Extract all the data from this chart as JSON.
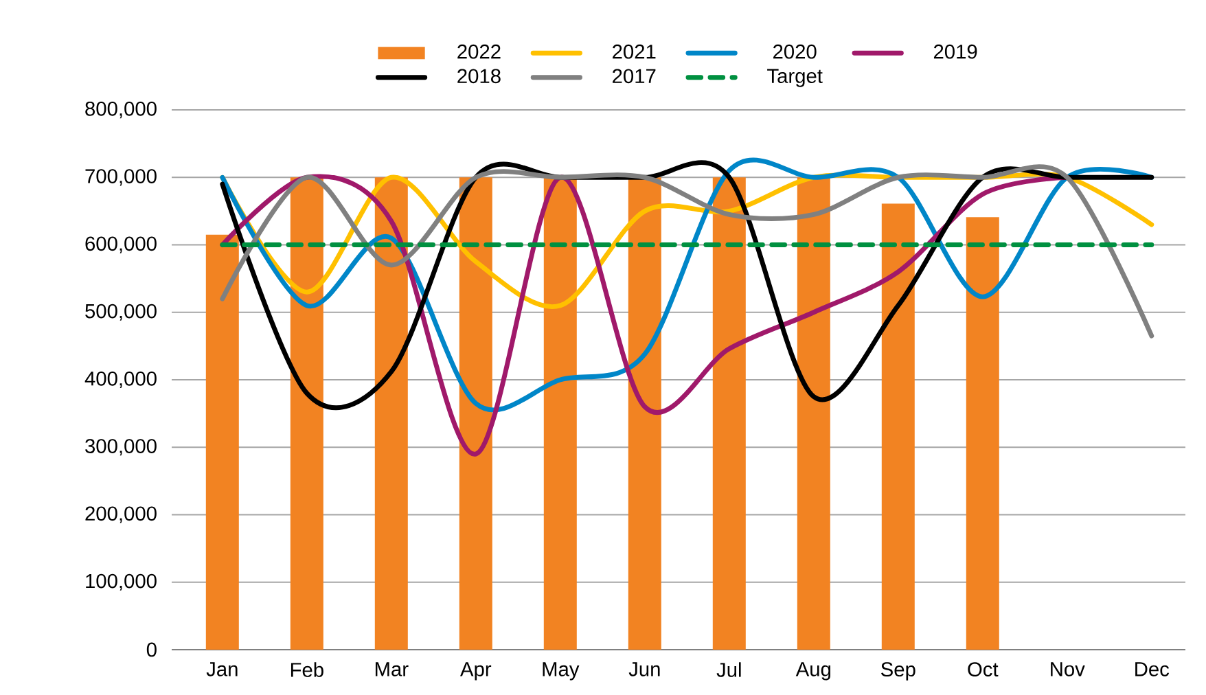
{
  "chart_data": {
    "type": "bar",
    "categories": [
      "Jan",
      "Feb",
      "Mar",
      "Apr",
      "May",
      "Jun",
      "Jul",
      "Aug",
      "Sep",
      "Oct",
      "Nov",
      "Dec"
    ],
    "series": [
      {
        "name": "2022",
        "color": "#f28322",
        "values": [
          615000,
          700000,
          700000,
          700000,
          700000,
          700000,
          700000,
          700000,
          661000,
          641000,
          null,
          null
        ]
      },
      {
        "name": "2021",
        "type": "line",
        "color": "#ffc000",
        "values": [
          700000,
          530000,
          700000,
          575000,
          510000,
          650000,
          650000,
          700000,
          700000,
          700000,
          700000,
          630000
        ]
      },
      {
        "name": "2020",
        "type": "line",
        "color": "#0086c8",
        "values": [
          700000,
          510000,
          610000,
          365000,
          400000,
          438000,
          710000,
          700000,
          700000,
          523000,
          700000,
          700000
        ]
      },
      {
        "name": "2019",
        "type": "line",
        "color": "#a0196a",
        "values": [
          600000,
          700000,
          635000,
          290000,
          700000,
          360000,
          446000,
          500000,
          560000,
          675000,
          700000,
          null
        ]
      },
      {
        "name": "2018",
        "type": "line",
        "color": "#000000",
        "values": [
          690000,
          380000,
          412000,
          700000,
          700000,
          700000,
          700000,
          375000,
          510000,
          700000,
          700000,
          700000
        ]
      },
      {
        "name": "2017",
        "type": "line",
        "color": "#808080",
        "values": [
          520000,
          700000,
          570000,
          700000,
          700000,
          700000,
          645000,
          645000,
          700000,
          700000,
          700000,
          465000
        ]
      },
      {
        "name": "Target",
        "type": "line",
        "color": "#009040",
        "line_style": "dashed",
        "values": [
          600000,
          600000,
          600000,
          600000,
          600000,
          600000,
          600000,
          600000,
          600000,
          600000,
          600000,
          600000
        ]
      }
    ],
    "ylim": [
      0,
      800000
    ],
    "yticks": [
      {
        "value": 0,
        "label": "0"
      },
      {
        "value": 100000,
        "label": "100,000"
      },
      {
        "value": 200000,
        "label": "200,000"
      },
      {
        "value": 300000,
        "label": "300,000"
      },
      {
        "value": 400000,
        "label": "400,000"
      },
      {
        "value": 500000,
        "label": "500,000"
      },
      {
        "value": 600000,
        "label": "600,000"
      },
      {
        "value": 700000,
        "label": "700,000"
      },
      {
        "value": 800000,
        "label": "800,000"
      }
    ],
    "grid": "y",
    "legend": "top"
  }
}
